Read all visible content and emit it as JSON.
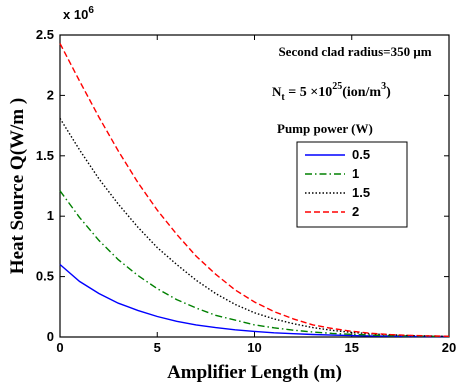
{
  "chart_data": {
    "type": "line",
    "xlabel": "Amplifier Length (m)",
    "ylabel": "Heat Source Q(W/m  )",
    "xlim": [
      0,
      20
    ],
    "ylim": [
      0,
      2.5
    ],
    "x_ticks": [
      "0",
      "5",
      "10",
      "15",
      "20"
    ],
    "y_ticks": [
      "0",
      "0.5",
      "1",
      "1.5",
      "2",
      "2.5"
    ],
    "y_multiplier": {
      "base": "x 10",
      "exponent": "6"
    },
    "annotations": {
      "radius": "Second clad radius=350 μm",
      "nt_symbol": "N",
      "nt_sub": "t",
      "nt_mid": " = 5 ×10",
      "nt_exp": "25",
      "nt_unit": "(ion/m",
      "nt_unit_exp": "3",
      "nt_close": ")"
    },
    "legend": {
      "title": "Pump power (W)",
      "placement": "right"
    },
    "x": [
      0,
      1,
      2,
      3,
      4,
      5,
      6,
      7,
      8,
      9,
      10,
      11,
      12,
      13,
      14,
      15,
      16,
      17,
      18,
      19,
      20
    ],
    "series": [
      {
        "name": "0.5",
        "color": "#0000ff",
        "dash": "solid",
        "values": [
          0.6,
          0.46,
          0.36,
          0.28,
          0.22,
          0.17,
          0.13,
          0.1,
          0.078,
          0.06,
          0.046,
          0.035,
          0.027,
          0.021,
          0.016,
          0.012,
          0.009,
          0.007,
          0.005,
          0.004,
          0.003
        ]
      },
      {
        "name": "1",
        "color": "#008000",
        "dash": "dashdot",
        "values": [
          1.21,
          0.99,
          0.8,
          0.64,
          0.51,
          0.4,
          0.31,
          0.24,
          0.18,
          0.14,
          0.1,
          0.076,
          0.056,
          0.041,
          0.03,
          0.022,
          0.016,
          0.011,
          0.008,
          0.006,
          0.004
        ]
      },
      {
        "name": "1.5",
        "color": "#000000",
        "dash": "dotted",
        "values": [
          1.81,
          1.55,
          1.31,
          1.1,
          0.91,
          0.74,
          0.6,
          0.47,
          0.36,
          0.27,
          0.2,
          0.15,
          0.11,
          0.078,
          0.055,
          0.038,
          0.026,
          0.018,
          0.012,
          0.008,
          0.005
        ]
      },
      {
        "name": "2",
        "color": "#ff0000",
        "dash": "dashed",
        "values": [
          2.43,
          2.12,
          1.82,
          1.54,
          1.28,
          1.05,
          0.85,
          0.67,
          0.52,
          0.39,
          0.29,
          0.21,
          0.15,
          0.1,
          0.07,
          0.047,
          0.031,
          0.02,
          0.013,
          0.009,
          0.006
        ]
      }
    ]
  }
}
